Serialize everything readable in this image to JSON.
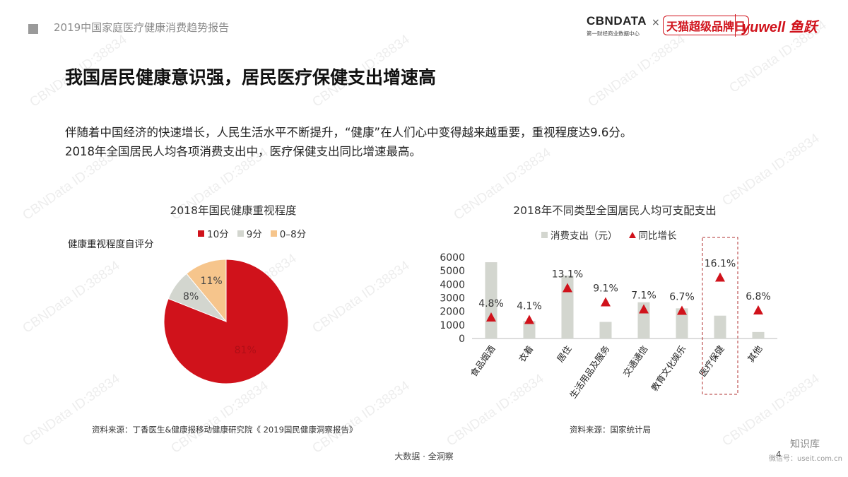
{
  "header": {
    "title": "2019中国家庭医疗健康消费趋势报告",
    "logo_cbn": "CBNDATA",
    "logo_cbn_sub": "第一财经商业数据中心",
    "logo_x": "×",
    "logo_tmall": "天猫超级品牌日",
    "logo_yuwell": "yuwell 鱼跃"
  },
  "slide": {
    "title": "我国居民健康意识强，居民医疗保健支出增速高",
    "paragraph": [
      "伴随着中国经济的快速增长，人民生活水平不断提升，“健康”在人们心中变得越来越重要，重视程度达9.6分。",
      "2018年全国居民人均各项消费支出中，医疗保健支出同比增速最高。"
    ]
  },
  "pie": {
    "ylabel": "健康重视程度自评分",
    "source": "资料来源：丁香医生&健康报移动健康研究院《 2019国民健康洞察报告》"
  },
  "bar": {
    "source": "资料来源：国家统计局"
  },
  "footer": {
    "text": "大数据 · 全洞察",
    "page": "4",
    "wechat": "知识库",
    "wechat_sub": "微信号：useit.com.cn"
  },
  "watermark": "CBNData ID:38834",
  "colors": {
    "red": "#d0121b",
    "gray": "#d3d6cf",
    "peach": "#f6c58c"
  },
  "chart_data": [
    {
      "type": "pie",
      "title": "2018年国民健康重视程度",
      "categories": [
        "10分",
        "9分",
        "0–8分"
      ],
      "values": [
        81,
        8,
        11
      ],
      "labels": [
        "81%",
        "8%",
        "11%"
      ],
      "colors": [
        "#d0121b",
        "#d3d6cf",
        "#f6c58c"
      ],
      "legend": "top"
    },
    {
      "type": "bar",
      "title": "2018年不同类型全国居民人均可支配支出",
      "categories": [
        "食品烟酒",
        "衣着",
        "居住",
        "生活用品及服务",
        "交通通信",
        "教育文化娱乐",
        "医疗保健",
        "其他"
      ],
      "series": [
        {
          "name": "消费支出（元）",
          "type": "bar",
          "values": [
            5631,
            1289,
            4647,
            1223,
            2675,
            2226,
            1685,
            477
          ]
        },
        {
          "name": "同比增长",
          "type": "marker",
          "values": [
            4.8,
            4.1,
            13.1,
            9.1,
            7.1,
            6.7,
            16.1,
            6.8
          ],
          "labels": [
            "4.8%",
            "4.1%",
            "13.1%",
            "9.1%",
            "7.1%",
            "6.7%",
            "16.1%",
            "6.8%"
          ]
        }
      ],
      "yticks": [
        "6000",
        "5000",
        "4000",
        "3000",
        "2000",
        "1000",
        "0"
      ],
      "ylim": [
        0,
        6000
      ],
      "highlight": "医疗保健",
      "legend": "top"
    }
  ]
}
